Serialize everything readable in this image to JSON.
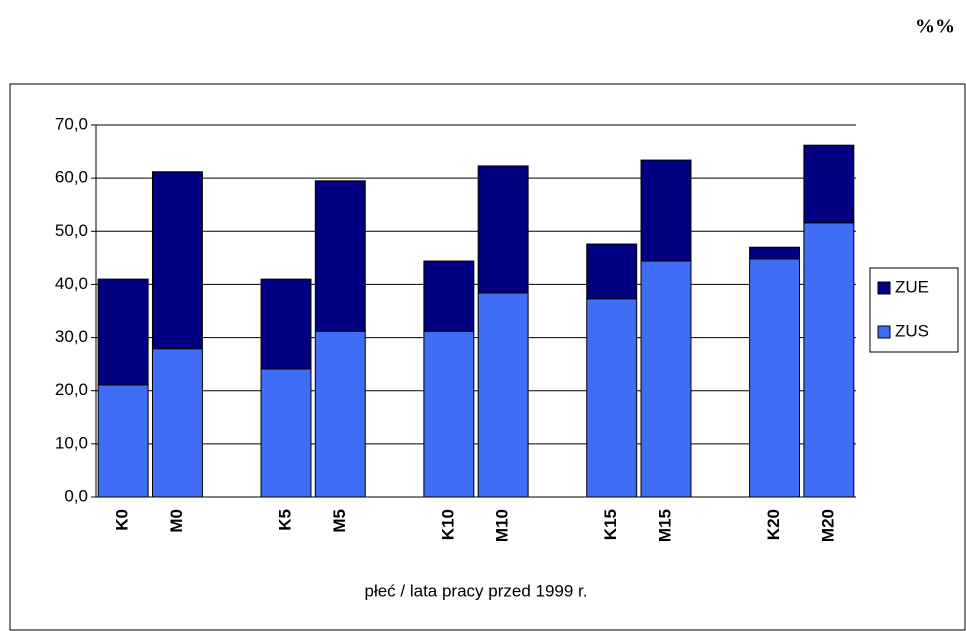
{
  "chart_data": {
    "type": "stacked_bar",
    "corner_label": "%%",
    "x_label": "płeć / lata pracy przed 1999 r.",
    "categories": [
      "K0",
      "M0",
      null,
      "K5",
      "M5",
      null,
      "K10",
      "M10",
      null,
      "K15",
      "M15",
      null,
      "K20",
      "M20"
    ],
    "series": [
      {
        "name": "ZUS",
        "color": "#3f6df5",
        "values": [
          21.1,
          27.9,
          null,
          24.1,
          31.2,
          null,
          31.2,
          38.4,
          null,
          37.3,
          44.4,
          null,
          44.8,
          51.6
        ]
      },
      {
        "name": "ZUE",
        "color": "#000080",
        "values": [
          19.9,
          33.3,
          null,
          16.9,
          28.3,
          null,
          13.2,
          23.9,
          null,
          10.3,
          19.0,
          null,
          2.2,
          14.6
        ]
      }
    ],
    "ylim": [
      0,
      70
    ],
    "yticks": [
      {
        "value": 0,
        "label": "0,0"
      },
      {
        "value": 10,
        "label": "10,0"
      },
      {
        "value": 20,
        "label": "20,0"
      },
      {
        "value": 30,
        "label": "30,0"
      },
      {
        "value": 40,
        "label": "40,0"
      },
      {
        "value": 50,
        "label": "50,0"
      },
      {
        "value": 60,
        "label": "60,0"
      },
      {
        "value": 70,
        "label": "70,0"
      }
    ],
    "legend": "right"
  }
}
